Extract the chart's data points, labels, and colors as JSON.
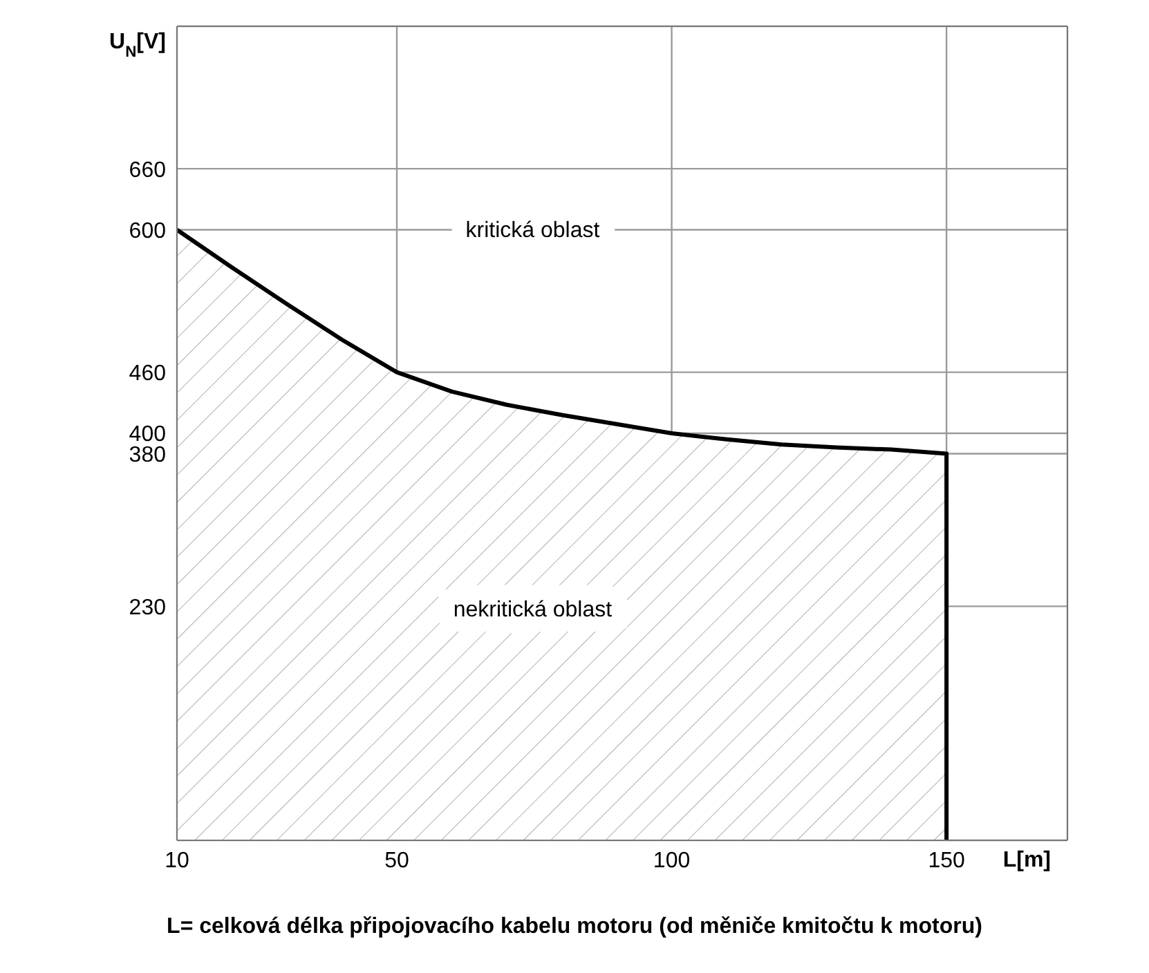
{
  "chart_data": {
    "type": "area",
    "xlabel": "L[m]",
    "ylabel": "U$_{N}$[V]",
    "x": [
      10,
      20,
      30,
      40,
      50,
      60,
      70,
      80,
      90,
      100,
      110,
      120,
      130,
      140,
      150,
      150
    ],
    "series": [
      {
        "color": "#000000",
        "values": [
          600,
          563,
          527,
          492,
          460,
          441,
          428,
          418,
          409,
          400,
          394,
          389,
          386,
          384,
          380,
          0
        ]
      }
    ],
    "xlim": [
      10,
      172
    ],
    "ylim": [
      0,
      800
    ],
    "xticks": [
      10,
      50,
      100,
      150
    ],
    "yticks": [
      230,
      380,
      400,
      460,
      600,
      660
    ],
    "grid": true,
    "marker": "none",
    "line_style": "solid",
    "annotations": [
      "kritická oblast",
      "nekritická oblast",
      "L= celková délka připojovacího kabelu motoru (od měniče kmitočtu k motoru)"
    ]
  }
}
